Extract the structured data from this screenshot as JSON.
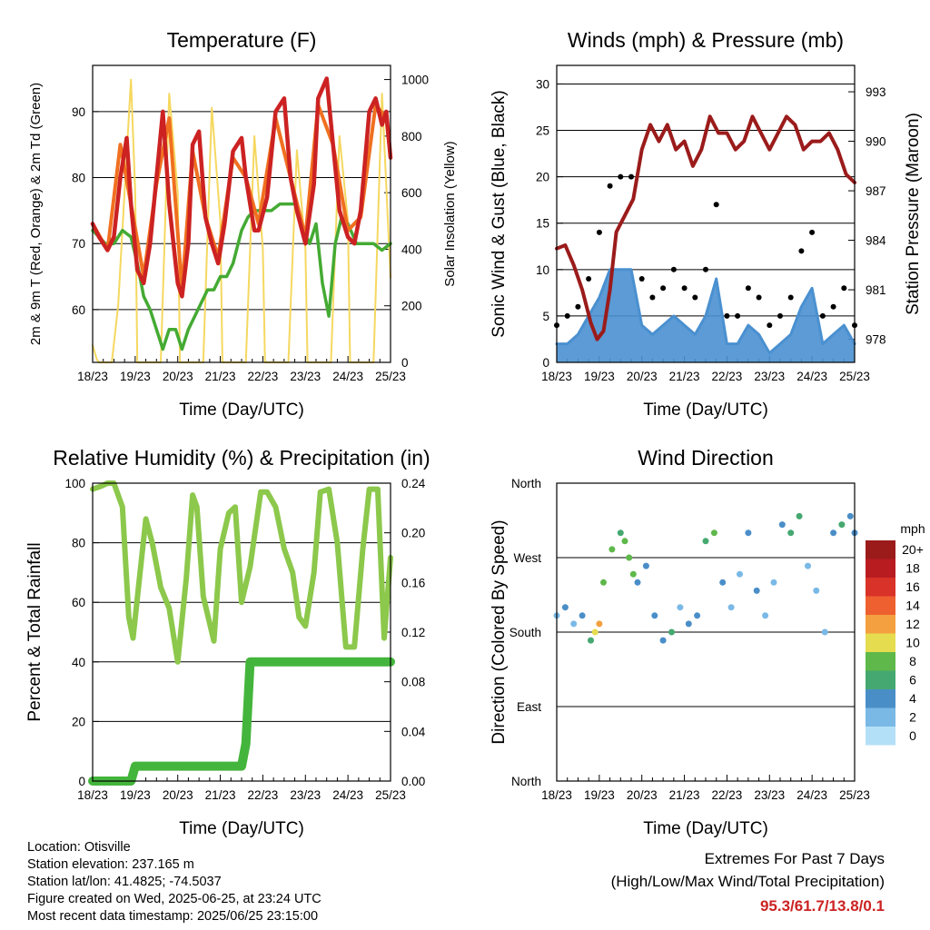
{
  "chart_data": [
    {
      "type": "line",
      "title": "Temperature (F)",
      "xlabel": "Time (Day/UTC)",
      "ylabel": "2m & 9m T (Red, Orange) & 2m Td (Green)",
      "ylabel_right": "Solar Insolation (Yellow)",
      "x_ticks": [
        "18/23",
        "19/23",
        "20/23",
        "21/23",
        "22/23",
        "23/23",
        "24/23",
        "25/23"
      ],
      "y_ticks": [
        "60",
        "70",
        "80",
        "90"
      ],
      "y_right_ticks": [
        "0",
        "200",
        "400",
        "600",
        "800",
        "1000"
      ],
      "ylim": [
        52,
        97
      ],
      "y_right_lim": [
        0,
        1050
      ],
      "xlim": [
        0,
        7
      ],
      "grid": "horizontal",
      "series": [
        {
          "name": "2m T",
          "color": "#cc2222",
          "x": [
            0,
            0.15,
            0.35,
            0.5,
            0.65,
            0.8,
            0.9,
            1.05,
            1.2,
            1.35,
            1.5,
            1.65,
            1.8,
            2.0,
            2.1,
            2.25,
            2.35,
            2.5,
            2.65,
            2.8,
            2.95,
            3.1,
            3.3,
            3.5,
            3.6,
            3.8,
            3.9,
            4.1,
            4.3,
            4.5,
            4.65,
            4.8,
            5.0,
            5.2,
            5.3,
            5.5,
            5.65,
            5.8,
            6.0,
            6.15,
            6.3,
            6.5,
            6.65,
            6.8,
            6.9,
            7.0
          ],
          "y": [
            73,
            71,
            69,
            71,
            80,
            86,
            76,
            66,
            64,
            70,
            80,
            90,
            76,
            64,
            62,
            70,
            85,
            87,
            74,
            70,
            67,
            73,
            84,
            86,
            80,
            72,
            72,
            77,
            90,
            92,
            80,
            75,
            70,
            79,
            92,
            95,
            85,
            75,
            71,
            70,
            75,
            90,
            92,
            88,
            90,
            83
          ]
        },
        {
          "name": "9m T",
          "color": "#f07020",
          "x": [
            0,
            0.35,
            0.65,
            0.9,
            1.2,
            1.5,
            1.8,
            2.1,
            2.35,
            2.65,
            2.95,
            3.3,
            3.6,
            3.9,
            4.3,
            4.65,
            5.0,
            5.3,
            5.65,
            6.0,
            6.3,
            6.65,
            6.9,
            7.0
          ],
          "y": [
            73,
            69,
            85,
            76,
            65,
            79,
            89,
            63,
            84,
            74,
            68,
            83,
            80,
            73,
            89,
            80,
            71,
            91,
            85,
            72,
            74,
            91,
            89,
            83
          ]
        },
        {
          "name": "2m Td",
          "color": "#44aa33",
          "x": [
            0,
            0.3,
            0.5,
            0.7,
            0.9,
            1.05,
            1.2,
            1.35,
            1.5,
            1.65,
            1.8,
            1.95,
            2.1,
            2.25,
            2.4,
            2.55,
            2.7,
            2.85,
            3.0,
            3.15,
            3.3,
            3.5,
            3.65,
            3.8,
            4.0,
            4.2,
            4.4,
            4.6,
            4.8,
            4.95,
            5.1,
            5.25,
            5.4,
            5.55,
            5.7,
            5.85,
            6.0,
            6.2,
            6.4,
            6.6,
            6.8,
            7.0
          ],
          "y": [
            72,
            70,
            70,
            72,
            71,
            67,
            62,
            60,
            57,
            54,
            57,
            57,
            54,
            57,
            59,
            61,
            63,
            63,
            65,
            65,
            67,
            72,
            74,
            75,
            75,
            75,
            76,
            76,
            76,
            72,
            70,
            73,
            64,
            59,
            70,
            74,
            73,
            70,
            70,
            70,
            69,
            70
          ]
        },
        {
          "name": "Solar Insolation",
          "color": "#f5d860",
          "axis": "right",
          "x": [
            0,
            0.1,
            0.15,
            0.3,
            0.45,
            0.6,
            0.75,
            0.9,
            1.0,
            1.05,
            1.2,
            1.4,
            1.6,
            1.8,
            2.0,
            2.05,
            2.2,
            2.4,
            2.6,
            2.8,
            3.0,
            3.05,
            3.2,
            3.4,
            3.6,
            3.8,
            4.0,
            4.05,
            4.2,
            4.4,
            4.6,
            4.8,
            5.0,
            5.05,
            5.2,
            5.4,
            5.6,
            5.8,
            6.0,
            6.05,
            6.2,
            6.4,
            6.6,
            6.8,
            7.0
          ],
          "y": [
            60,
            10,
            0,
            0,
            0,
            200,
            600,
            1000,
            600,
            0,
            0,
            0,
            0,
            950,
            600,
            0,
            0,
            0,
            0,
            900,
            500,
            0,
            0,
            0,
            0,
            800,
            400,
            0,
            0,
            0,
            0,
            750,
            400,
            0,
            0,
            0,
            0,
            800,
            500,
            0,
            0,
            0,
            0,
            950,
            300
          ]
        }
      ]
    },
    {
      "type": "scatter",
      "title": "Winds (mph) & Pressure (mb)",
      "xlabel": "Time (Day/UTC)",
      "ylabel": "Sonic Wind & Gust (Blue, Black)",
      "ylabel_right": "Station Pressure (Maroon)",
      "x_ticks": [
        "18/23",
        "19/23",
        "20/23",
        "21/23",
        "22/23",
        "23/23",
        "24/23",
        "25/23"
      ],
      "y_ticks": [
        "0",
        "5",
        "10",
        "15",
        "20",
        "25",
        "30"
      ],
      "y_right_ticks": [
        "978",
        "981",
        "984",
        "987",
        "990",
        "993"
      ],
      "ylim": [
        0,
        32
      ],
      "y_right_lim": [
        976.6,
        994.6
      ],
      "xlim": [
        0,
        7
      ],
      "grid": "horizontal",
      "series": [
        {
          "name": "Gust",
          "color": "#000000",
          "x": [
            0,
            0.25,
            0.5,
            0.75,
            1.0,
            1.25,
            1.5,
            1.75,
            2.0,
            2.25,
            2.5,
            2.75,
            3.0,
            3.25,
            3.5,
            3.75,
            4.0,
            4.25,
            4.5,
            4.75,
            5.0,
            5.25,
            5.5,
            5.75,
            6.0,
            6.25,
            6.5,
            6.75,
            7.0
          ],
          "y": [
            4,
            5,
            6,
            9,
            14,
            19,
            20,
            20,
            9,
            7,
            8,
            10,
            8,
            7,
            10,
            17,
            5,
            5,
            8,
            7,
            4,
            5,
            7,
            12,
            14,
            5,
            6,
            8,
            4
          ]
        },
        {
          "name": "Wind",
          "color": "#4a90d0",
          "x": [
            0,
            0.25,
            0.5,
            0.75,
            1.0,
            1.25,
            1.5,
            1.75,
            2.0,
            2.25,
            2.5,
            2.75,
            3.0,
            3.25,
            3.5,
            3.75,
            4.0,
            4.25,
            4.5,
            4.75,
            5.0,
            5.25,
            5.5,
            5.75,
            6.0,
            6.25,
            6.5,
            6.75,
            7.0
          ],
          "y": [
            2,
            2,
            3,
            5,
            7,
            10,
            10,
            10,
            4,
            3,
            4,
            5,
            4,
            3,
            5,
            9,
            2,
            2,
            4,
            3,
            1,
            2,
            3,
            6,
            8,
            2,
            3,
            4,
            2
          ]
        },
        {
          "name": "Station Pressure",
          "color": "#9b1b1b",
          "axis": "right",
          "x": [
            0,
            0.2,
            0.4,
            0.6,
            0.8,
            0.95,
            1.1,
            1.25,
            1.4,
            1.6,
            1.8,
            2.0,
            2.2,
            2.4,
            2.6,
            2.8,
            3.0,
            3.2,
            3.4,
            3.6,
            3.8,
            4.0,
            4.2,
            4.4,
            4.6,
            4.8,
            5.0,
            5.2,
            5.4,
            5.6,
            5.8,
            6.0,
            6.2,
            6.4,
            6.6,
            6.8,
            7.0
          ],
          "y": [
            983.5,
            983.7,
            982.5,
            981.0,
            979.0,
            978.0,
            978.5,
            981.0,
            984.5,
            985.5,
            986.5,
            989.5,
            991.0,
            990.0,
            991.0,
            989.5,
            990.0,
            988.5,
            989.5,
            991.5,
            990.5,
            990.5,
            989.5,
            990.0,
            991.5,
            990.5,
            989.5,
            990.5,
            991.5,
            991.0,
            989.5,
            990.0,
            990.0,
            990.5,
            989.5,
            988.0,
            987.5
          ]
        }
      ]
    },
    {
      "type": "line",
      "title": "Relative Humidity (%) & Precipitation (in)",
      "xlabel": "Time (Day/UTC)",
      "ylabel": "Percent & Total Rainfall",
      "x_ticks": [
        "18/23",
        "19/23",
        "20/23",
        "21/23",
        "22/23",
        "23/23",
        "24/23",
        "25/23"
      ],
      "y_ticks": [
        "0",
        "20",
        "40",
        "60",
        "80",
        "100"
      ],
      "y_right_ticks": [
        "0.00",
        "0.04",
        "0.08",
        "0.12",
        "0.16",
        "0.20",
        "0.24"
      ],
      "ylim": [
        0,
        100
      ],
      "y_right_lim": [
        0,
        0.24
      ],
      "xlim": [
        0,
        7
      ],
      "grid": "horizontal",
      "series": [
        {
          "name": "Relative Humidity",
          "color": "#8cc84b",
          "x": [
            0,
            0.2,
            0.35,
            0.5,
            0.7,
            0.85,
            0.95,
            1.1,
            1.25,
            1.4,
            1.6,
            1.8,
            2.0,
            2.2,
            2.35,
            2.45,
            2.6,
            2.85,
            3.0,
            3.2,
            3.35,
            3.5,
            3.7,
            3.95,
            4.1,
            4.3,
            4.5,
            4.7,
            4.85,
            5.0,
            5.2,
            5.35,
            5.55,
            5.75,
            5.95,
            6.15,
            6.35,
            6.5,
            6.7,
            6.85,
            7.0
          ],
          "y": [
            98,
            99,
            100,
            100,
            92,
            55,
            48,
            68,
            88,
            80,
            65,
            58,
            40,
            68,
            96,
            92,
            62,
            47,
            78,
            90,
            92,
            60,
            72,
            97,
            97,
            92,
            78,
            70,
            55,
            52,
            70,
            97,
            98,
            80,
            45,
            45,
            78,
            98,
            98,
            48,
            75
          ]
        },
        {
          "name": "Total Rainfall",
          "color": "#44b53c",
          "axis": "right",
          "x": [
            0,
            0.9,
            1.0,
            1.5,
            2.0,
            2.5,
            3.0,
            3.5,
            3.6,
            3.7,
            4.0,
            5.0,
            6.0,
            7.0
          ],
          "y": [
            0.0,
            0.0,
            0.012,
            0.012,
            0.012,
            0.012,
            0.012,
            0.012,
            0.03,
            0.096,
            0.096,
            0.096,
            0.096,
            0.096
          ]
        }
      ]
    },
    {
      "type": "scatter",
      "title": "Wind Direction",
      "xlabel": "Time (Day/UTC)",
      "ylabel": "Direction (Colored By Speed)",
      "x_ticks": [
        "18/23",
        "19/23",
        "20/23",
        "21/23",
        "22/23",
        "23/23",
        "24/23",
        "25/23"
      ],
      "y_ticks": [
        "North",
        "East",
        "South",
        "West",
        "North"
      ],
      "ylim": [
        0,
        360
      ],
      "xlim": [
        0,
        7
      ],
      "grid": "horizontal",
      "legend": {
        "title": "mph",
        "labels": [
          "20+",
          "18",
          "16",
          "14",
          "12",
          "10",
          "8",
          "6",
          "4",
          "2",
          "0"
        ],
        "colors": [
          "#9b1b1b",
          "#b81c20",
          "#d93228",
          "#ee6030",
          "#f4a040",
          "#e6dc50",
          "#5eb84a",
          "#45a870",
          "#4a8ec8",
          "#7ab9e6",
          "#b4e0f7"
        ],
        "position": "right"
      },
      "x": [
        0,
        0.2,
        0.4,
        0.6,
        0.8,
        0.9,
        1.0,
        1.1,
        1.3,
        1.5,
        1.6,
        1.7,
        1.8,
        1.9,
        2.1,
        2.3,
        2.5,
        2.7,
        2.9,
        3.1,
        3.3,
        3.5,
        3.7,
        3.9,
        4.1,
        4.3,
        4.5,
        4.7,
        4.9,
        5.1,
        5.3,
        5.5,
        5.7,
        5.9,
        6.1,
        6.3,
        6.5,
        6.7,
        6.9,
        7.0
      ],
      "y": [
        200,
        210,
        190,
        200,
        170,
        180,
        190,
        240,
        280,
        300,
        290,
        270,
        250,
        240,
        260,
        200,
        170,
        180,
        210,
        190,
        200,
        290,
        300,
        240,
        210,
        250,
        300,
        230,
        200,
        240,
        310,
        300,
        320,
        260,
        230,
        180,
        300,
        310,
        320,
        300
      ],
      "speed": [
        3,
        4,
        3,
        5,
        7,
        10,
        12,
        8,
        9,
        6,
        8,
        9,
        8,
        5,
        4,
        4,
        5,
        6,
        3,
        4,
        5,
        7,
        8,
        4,
        3,
        2,
        4,
        5,
        3,
        2,
        5,
        6,
        7,
        3,
        2,
        3,
        5,
        6,
        5,
        4
      ]
    }
  ],
  "footer": {
    "location": "Location: Otisville",
    "elevation": "Station elevation: 237.165 m",
    "latlon": "Station lat/lon: 41.4825; -74.5037",
    "created": "Figure created on Wed, 2025-06-25, at 23:24 UTC",
    "recent": "Most recent data timestamp: 2025/06/25 23:15:00"
  },
  "extremes": {
    "title": "Extremes For Past 7 Days",
    "subtitle": "(High/Low/Max Wind/Total Precipitation)",
    "values": "95.3/61.7/13.8/0.1"
  }
}
